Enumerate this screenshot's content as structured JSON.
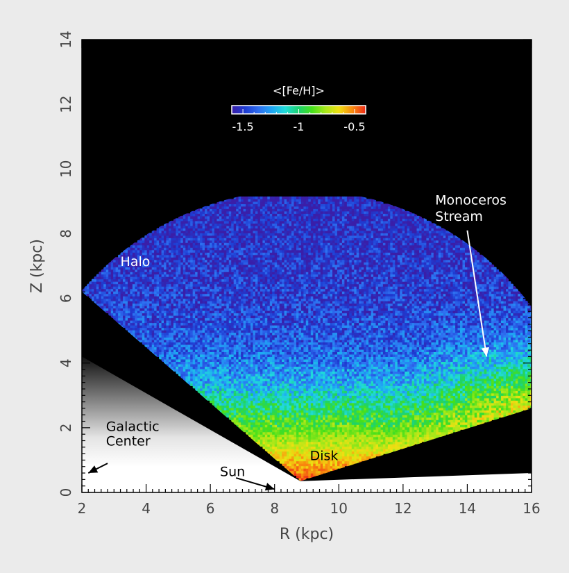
{
  "chart_data": {
    "type": "heatmap",
    "title": "",
    "xlabel": "R (kpc)",
    "ylabel": "Z (kpc)",
    "xlim": [
      2,
      16
    ],
    "ylim": [
      0,
      14
    ],
    "x_ticks": [
      "2",
      "4",
      "6",
      "8",
      "10",
      "12",
      "14",
      "16"
    ],
    "y_ticks": [
      "0",
      "2",
      "4",
      "6",
      "8",
      "10",
      "12",
      "14"
    ],
    "grid": false,
    "background": "#000000",
    "colorbar": {
      "title": "<[Fe/H]>",
      "range": [
        -1.6,
        -0.4
      ],
      "tick_labels": [
        "-1.5",
        "-1",
        "-0.5"
      ],
      "tick_values": [
        -1.5,
        -1.0,
        -0.5
      ],
      "colors": [
        "#3a1ea8",
        "#1e3cd2",
        "#2e6ef0",
        "#1ea6f4",
        "#20dcd8",
        "#1cd26e",
        "#46e01a",
        "#a8e81a",
        "#f0e012",
        "#f88a0e",
        "#ee2a18"
      ]
    },
    "coverage_wedge": {
      "apex": [
        8.8,
        0.35
      ],
      "radius_kpc": 9.0,
      "left_edge_point": [
        2.0,
        6.2
      ],
      "right_edge_point": [
        16.0,
        2.6
      ]
    },
    "metallicity_profile": [
      {
        "z": 0.4,
        "feh": -0.45
      },
      {
        "z": 1.0,
        "feh": -0.6
      },
      {
        "z": 1.6,
        "feh": -0.75
      },
      {
        "z": 2.2,
        "feh": -0.9
      },
      {
        "z": 2.8,
        "feh": -1.05
      },
      {
        "z": 3.5,
        "feh": -1.25
      },
      {
        "z": 4.5,
        "feh": -1.4
      },
      {
        "z": 6.0,
        "feh": -1.48
      },
      {
        "z": 9.0,
        "feh": -1.55
      }
    ],
    "monoceros_excess": {
      "r_min": 12.0,
      "r_max": 16.0,
      "z_center": 3.0,
      "z_width": 1.6,
      "shift": 0.35
    },
    "annotations": [
      {
        "text": "Halo",
        "x": 3.2,
        "y": 7.0,
        "color": "#ffffff"
      },
      {
        "text": "Disk",
        "x": 9.1,
        "y": 1.0,
        "color": "#000000"
      },
      {
        "text": "Galactic",
        "x": 2.75,
        "y": 1.9,
        "color": "#000000"
      },
      {
        "text": "Center",
        "x": 2.75,
        "y": 1.45,
        "color": "#000000"
      },
      {
        "text": "Sun",
        "x": 6.3,
        "y": 0.5,
        "color": "#000000"
      },
      {
        "text": "Monoceros",
        "x": 13.0,
        "y": 8.9,
        "color": "#ffffff"
      },
      {
        "text": "Stream",
        "x": 13.0,
        "y": 8.4,
        "color": "#ffffff"
      }
    ],
    "arrows": [
      {
        "from": [
          2.8,
          0.9
        ],
        "to": [
          2.2,
          0.6
        ],
        "color": "#000000"
      },
      {
        "from": [
          6.8,
          0.45
        ],
        "to": [
          8.0,
          0.1
        ],
        "color": "#000000"
      },
      {
        "from": [
          14.0,
          8.1
        ],
        "to": [
          14.6,
          4.2
        ],
        "color": "#ffffff"
      }
    ]
  }
}
